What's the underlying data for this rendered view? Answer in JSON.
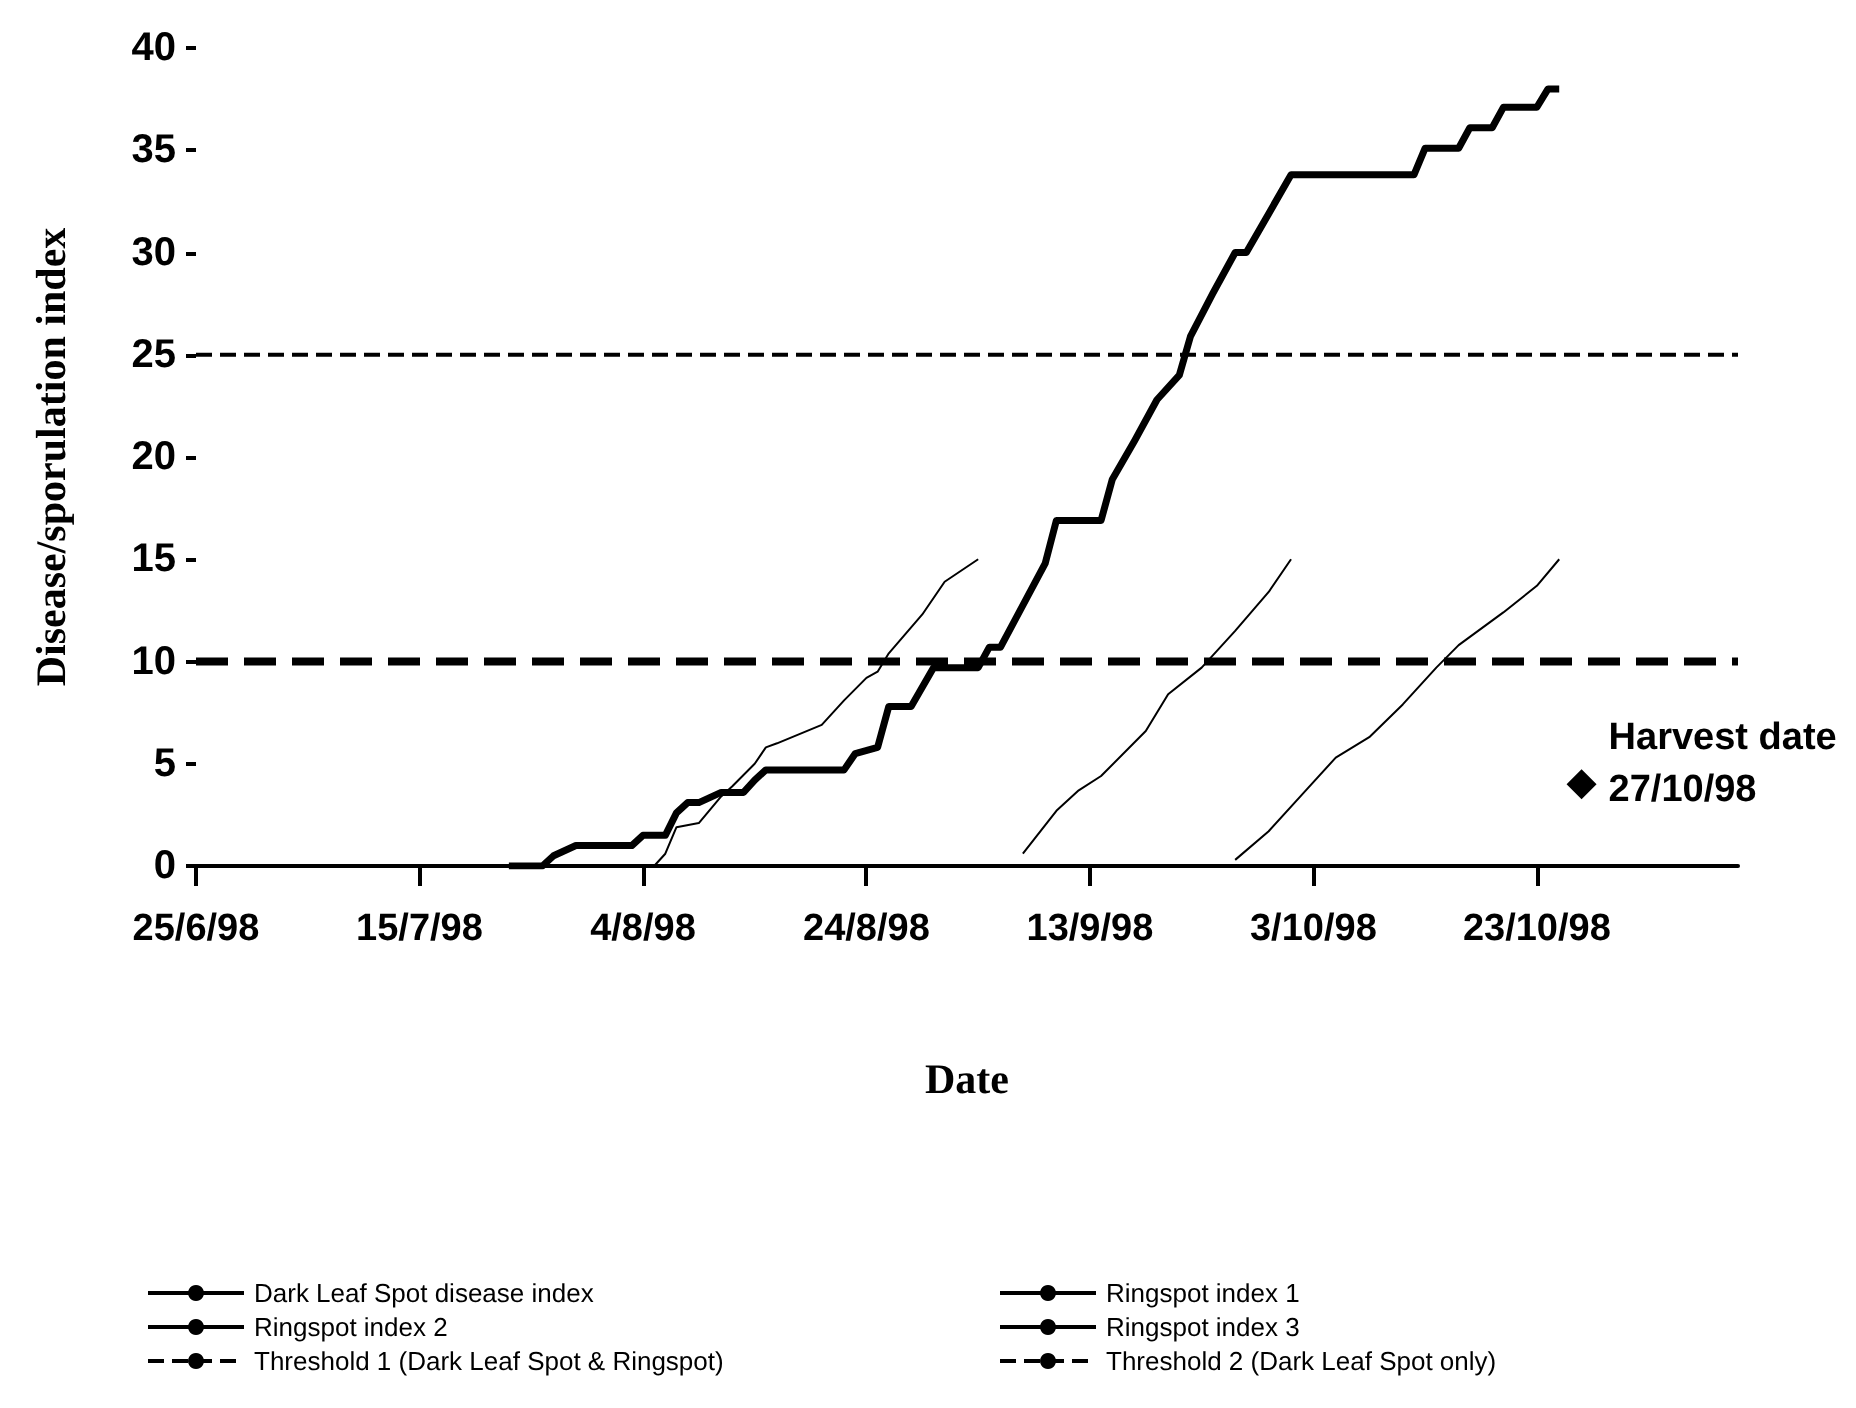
{
  "chart_data": {
    "type": "line",
    "xlabel": "Date",
    "ylabel": "Disease/sporulation index",
    "xlim": [
      "1998-06-25",
      "1998-11-10"
    ],
    "xticks": [
      {
        "value": "1998-06-25",
        "label": "25/6/98"
      },
      {
        "value": "1998-07-15",
        "label": "15/7/98"
      },
      {
        "value": "1998-08-04",
        "label": "4/8/98"
      },
      {
        "value": "1998-08-24",
        "label": "24/8/98"
      },
      {
        "value": "1998-09-13",
        "label": "13/9/98"
      },
      {
        "value": "1998-10-03",
        "label": "3/10/98"
      },
      {
        "value": "1998-10-23",
        "label": "23/10/98"
      }
    ],
    "ylim": [
      0,
      40
    ],
    "yticks": [
      0,
      5,
      10,
      15,
      20,
      25,
      30,
      35,
      40
    ],
    "grid": false,
    "legend": "bottom",
    "marker": "none",
    "series": [
      {
        "name": "Dark Leaf Spot disease index",
        "color": "#000000",
        "line_style": "solid",
        "x": [
          "1998-07-23",
          "1998-07-26",
          "1998-07-27",
          "1998-07-29",
          "1998-08-03",
          "1998-08-04",
          "1998-08-06",
          "1998-08-07",
          "1998-08-08",
          "1998-08-09",
          "1998-08-11",
          "1998-08-13",
          "1998-08-14",
          "1998-08-15",
          "1998-08-22",
          "1998-08-23",
          "1998-08-25",
          "1998-08-26",
          "1998-08-28",
          "1998-08-30",
          "1998-09-03",
          "1998-09-04",
          "1998-09-05",
          "1998-09-09",
          "1998-09-10",
          "1998-09-14",
          "1998-09-15",
          "1998-09-17",
          "1998-09-19",
          "1998-09-21",
          "1998-09-22",
          "1998-09-24",
          "1998-09-26",
          "1998-09-27",
          "1998-09-29",
          "1998-10-01",
          "1998-10-12",
          "1998-10-13",
          "1998-10-16",
          "1998-10-17",
          "1998-10-19",
          "1998-10-20",
          "1998-10-23",
          "1998-10-24",
          "1998-10-25"
        ],
        "values": [
          0,
          0,
          0.5,
          1,
          1,
          1.5,
          1.5,
          2.6,
          3.1,
          3.1,
          3.6,
          3.6,
          4.2,
          4.7,
          4.7,
          5.5,
          5.8,
          7.8,
          7.8,
          9.7,
          9.7,
          10.7,
          10.7,
          14.8,
          16.9,
          16.9,
          18.9,
          20.8,
          22.8,
          24,
          25.9,
          28,
          30,
          30,
          31.9,
          33.8,
          33.8,
          35.1,
          35.1,
          36.1,
          36.1,
          37.1,
          37.1,
          38,
          38
        ]
      },
      {
        "name": "Ringspot index 1",
        "color": "#000000",
        "line_style": "solid",
        "x": [
          "1998-08-05",
          "1998-08-06",
          "1998-08-07",
          "1998-08-09",
          "1998-08-11",
          "1998-08-12",
          "1998-08-14",
          "1998-08-15",
          "1998-08-16",
          "1998-08-20",
          "1998-08-22",
          "1998-08-24",
          "1998-08-25",
          "1998-08-26",
          "1998-08-29",
          "1998-08-31",
          "1998-09-03"
        ],
        "values": [
          0,
          0.6,
          1.9,
          2.1,
          3.4,
          3.9,
          5,
          5.8,
          6,
          6.9,
          8.1,
          9.2,
          9.5,
          10.4,
          12.3,
          13.9,
          15
        ]
      },
      {
        "name": "Ringspot index 2",
        "color": "#000000",
        "line_style": "solid",
        "x": [
          "1998-09-07",
          "1998-09-10",
          "1998-09-12",
          "1998-09-14",
          "1998-09-18",
          "1998-09-20",
          "1998-09-23",
          "1998-09-26",
          "1998-09-29",
          "1998-10-01"
        ],
        "values": [
          0.6,
          2.7,
          3.7,
          4.4,
          6.6,
          8.4,
          9.7,
          11.5,
          13.4,
          15
        ]
      },
      {
        "name": "Ringspot index 3",
        "color": "#000000",
        "line_style": "solid",
        "x": [
          "1998-09-26",
          "1998-09-29",
          "1998-10-02",
          "1998-10-05",
          "1998-10-08",
          "1998-10-11",
          "1998-10-14",
          "1998-10-16",
          "1998-10-20",
          "1998-10-23",
          "1998-10-25"
        ],
        "values": [
          0.3,
          1.7,
          3.5,
          5.3,
          6.3,
          7.9,
          9.7,
          10.8,
          12.4,
          13.7,
          15
        ]
      },
      {
        "name": "Threshold 1 (Dark Leaf Spot & Ringspot)",
        "color": "#000000",
        "line_style": "dashed",
        "x": [
          "1998-06-25",
          "1998-11-10"
        ],
        "values": [
          10,
          10
        ]
      },
      {
        "name": "Threshold 2 (Dark Leaf Spot only)",
        "color": "#000000",
        "line_style": "dashed",
        "x": [
          "1998-06-25",
          "1998-11-10"
        ],
        "values": [
          25,
          25
        ]
      },
      {
        "type": "scatter",
        "marker": "diamond",
        "color": "#000000",
        "x": [
          "1998-10-27"
        ],
        "values": [
          4
        ]
      }
    ],
    "annotations": [
      {
        "text": "Harvest date\n27/10/98",
        "x": "1998-10-27",
        "y": 4
      }
    ]
  }
}
